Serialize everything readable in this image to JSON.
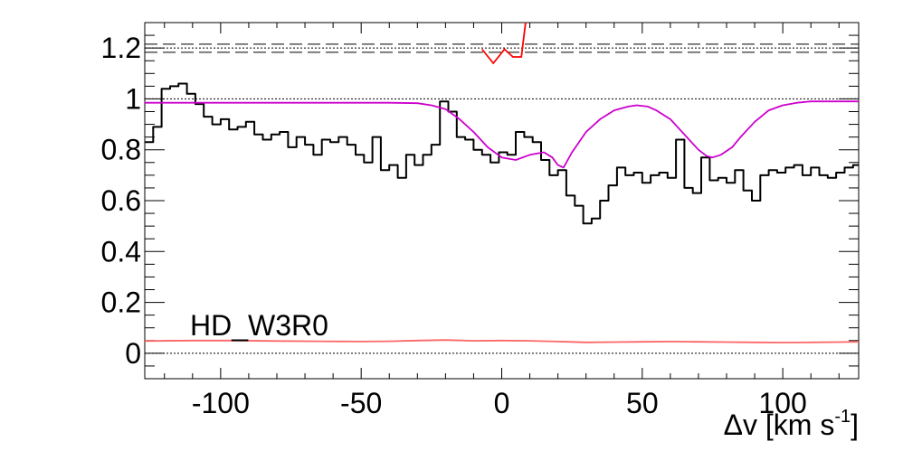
{
  "chart_data": {
    "type": "line",
    "panel_label": "HD_W3R0",
    "xlabel": "Δv [km s",
    "xlabel_sup": "-1",
    "xlabel_close": "]",
    "xlim": [
      -127,
      127
    ],
    "ylim": [
      -0.1,
      1.3
    ],
    "x_ticks": [
      -100,
      -50,
      0,
      50,
      100
    ],
    "x_tick_labels": [
      "-100",
      "-50",
      "0",
      "50",
      "100"
    ],
    "y_ticks": [
      0,
      0.2,
      0.4,
      0.6,
      0.8,
      1,
      1.2
    ],
    "y_tick_labels": [
      "0",
      "0.2",
      "0.4",
      "0.6",
      "0.8",
      "1",
      "1.2"
    ],
    "reference_lines": {
      "dotted": [
        0,
        1,
        1.2
      ],
      "dashed": [
        1.183,
        1.215
      ]
    },
    "colors": {
      "data": "#000000",
      "model": "#cc00cc",
      "residual": "#ff0000",
      "error": "#ff6666",
      "reference": "#000000"
    },
    "series": [
      {
        "style": "step",
        "color": "#000000",
        "x": [
          -127,
          -124,
          -121,
          -118,
          -115,
          -112,
          -109,
          -106,
          -103,
          -100,
          -97,
          -94,
          -91,
          -88,
          -85,
          -82,
          -79,
          -76,
          -73,
          -70,
          -67,
          -64,
          -61,
          -58,
          -55,
          -52,
          -49,
          -46,
          -43,
          -40,
          -37,
          -34,
          -31,
          -28,
          -25,
          -22,
          -19,
          -16,
          -13,
          -10,
          -7,
          -4,
          -1,
          2,
          5,
          8,
          11,
          14,
          17,
          20,
          23,
          26,
          29,
          32,
          35,
          38,
          41,
          44,
          47,
          50,
          53,
          56,
          59,
          62,
          65,
          68,
          71,
          74,
          77,
          80,
          83,
          86,
          89,
          92,
          95,
          98,
          101,
          104,
          107,
          110,
          113,
          116,
          119,
          122,
          125
        ],
        "y": [
          0.83,
          0.89,
          1.04,
          1.05,
          1.06,
          1.02,
          0.98,
          0.93,
          0.9,
          0.92,
          0.88,
          0.89,
          0.91,
          0.86,
          0.84,
          0.86,
          0.87,
          0.81,
          0.85,
          0.82,
          0.78,
          0.84,
          0.83,
          0.85,
          0.82,
          0.78,
          0.75,
          0.85,
          0.72,
          0.74,
          0.69,
          0.78,
          0.74,
          0.78,
          0.82,
          0.99,
          0.95,
          0.85,
          0.84,
          0.8,
          0.78,
          0.75,
          0.79,
          0.78,
          0.87,
          0.85,
          0.83,
          0.76,
          0.7,
          0.72,
          0.62,
          0.58,
          0.51,
          0.53,
          0.6,
          0.66,
          0.73,
          0.7,
          0.71,
          0.67,
          0.7,
          0.71,
          0.69,
          0.84,
          0.65,
          0.63,
          0.77,
          0.68,
          0.69,
          0.67,
          0.72,
          0.64,
          0.6,
          0.7,
          0.72,
          0.71,
          0.73,
          0.74,
          0.7,
          0.73,
          0.7,
          0.69,
          0.71,
          0.73,
          0.74
        ]
      },
      {
        "style": "line",
        "color": "#cc00cc",
        "x": [
          -127,
          -100,
          -60,
          -40,
          -30,
          -25,
          -20,
          -15,
          -10,
          -5,
          0,
          5,
          10,
          15,
          18,
          20,
          22,
          25,
          30,
          35,
          40,
          45,
          48,
          52,
          55,
          60,
          65,
          70,
          73,
          75,
          78,
          82,
          85,
          90,
          95,
          100,
          105,
          110,
          115,
          127
        ],
        "y": [
          0.985,
          0.985,
          0.985,
          0.985,
          0.983,
          0.975,
          0.96,
          0.92,
          0.87,
          0.81,
          0.77,
          0.76,
          0.78,
          0.79,
          0.77,
          0.74,
          0.73,
          0.79,
          0.87,
          0.92,
          0.955,
          0.97,
          0.975,
          0.97,
          0.955,
          0.92,
          0.86,
          0.8,
          0.775,
          0.77,
          0.78,
          0.81,
          0.85,
          0.91,
          0.955,
          0.975,
          0.985,
          0.99,
          0.99,
          0.99
        ]
      },
      {
        "style": "line",
        "color": "#ff6666",
        "x": [
          -127,
          -110,
          -95,
          -80,
          -65,
          -50,
          -40,
          -30,
          -20,
          -10,
          0,
          10,
          20,
          30,
          40,
          50,
          60,
          70,
          80,
          90,
          100,
          110,
          120,
          127
        ],
        "y": [
          0.048,
          0.05,
          0.05,
          0.048,
          0.047,
          0.046,
          0.047,
          0.05,
          0.052,
          0.049,
          0.05,
          0.049,
          0.046,
          0.043,
          0.044,
          0.045,
          0.046,
          0.045,
          0.044,
          0.043,
          0.042,
          0.043,
          0.044,
          0.045
        ]
      },
      {
        "style": "line",
        "color": "#ff0000",
        "x": [
          -7,
          -3,
          1,
          4,
          7,
          8.5
        ],
        "y": [
          1.195,
          1.14,
          1.195,
          1.165,
          1.165,
          1.32
        ]
      }
    ]
  }
}
